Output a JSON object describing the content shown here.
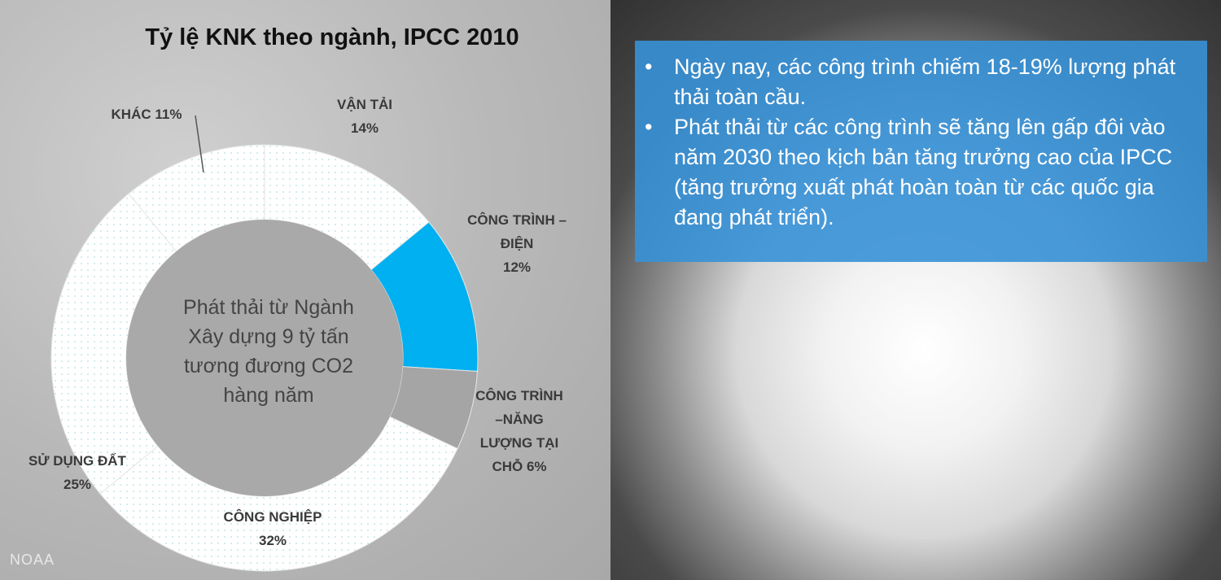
{
  "chart_data": {
    "type": "donut",
    "title": "Tỷ lệ KNK theo ngành, IPCC 2010",
    "center_text": "Phát thải từ Ngành Xây dựng 9 tỷ tấn tương đương CO2 hàng năm",
    "categories": [
      "VẬN TẢI",
      "CÔNG TRÌNH – ĐIỆN",
      "CÔNG TRÌNH –NĂNG LƯỢNG TẠI CHỖ",
      "CÔNG NGHIỆP",
      "SỬ DỤNG ĐẤT",
      "KHÁC"
    ],
    "values": [
      14,
      12,
      6,
      32,
      25,
      11
    ],
    "value_labels": [
      "14%",
      "12%",
      "6%",
      "32%",
      "25%",
      "11%"
    ],
    "colors": [
      "#ffffff",
      "#00b0f0",
      "#a5a5a5",
      "#ffffff",
      "#ffffff",
      "#ffffff"
    ]
  },
  "bullets": [
    "Ngày nay, các công trình chiếm 18-19% lượng phát thải toàn cầu.",
    "Phát thải từ các công trình sẽ tăng lên gấp đôi vào năm 2030 theo kịch bản tăng trưởng cao của IPCC (tăng trưởng xuất phát hoàn toàn từ các quốc gia đang phát triển)."
  ],
  "credit": "NOAA"
}
